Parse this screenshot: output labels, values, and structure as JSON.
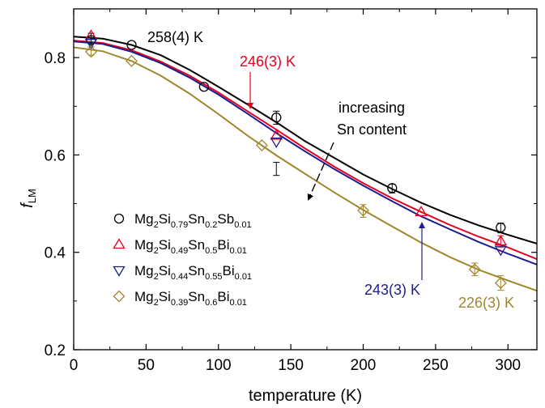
{
  "chart_data": {
    "type": "scatter",
    "xlabel": "temperature (K)",
    "ylabel_main": "f",
    "ylabel_sub": "LM",
    "xlim": [
      0,
      320
    ],
    "ylim": [
      0.2,
      0.9
    ],
    "x_ticks": [
      0,
      50,
      100,
      150,
      200,
      250,
      300
    ],
    "x_tick_labels": [
      "0",
      "50",
      "100",
      "150",
      "200",
      "250",
      "300"
    ],
    "y_ticks": [
      0.2,
      0.4,
      0.6,
      0.8
    ],
    "y_tick_labels": [
      "0.2",
      "0.4",
      "0.6",
      "0.8"
    ],
    "grid": false,
    "legend_position": "left",
    "series": [
      {
        "formula": [
          [
            "Mg",
            "2"
          ],
          [
            "Si",
            "0.79"
          ],
          [
            "Sn",
            "0.2"
          ],
          [
            "Sb",
            "0.01"
          ]
        ],
        "marker": "circle",
        "color": "#000000",
        "points": [
          [
            12,
            0.836
          ],
          [
            40,
            0.826
          ],
          [
            90,
            0.74
          ],
          [
            140,
            0.677
          ],
          [
            220,
            0.532
          ],
          [
            295,
            0.451
          ]
        ],
        "fit_x": [
          0,
          20,
          40,
          60,
          80,
          100,
          120,
          140,
          160,
          180,
          200,
          220,
          240,
          260,
          280,
          300,
          320
        ],
        "fit_y": [
          0.843,
          0.839,
          0.826,
          0.805,
          0.775,
          0.74,
          0.704,
          0.667,
          0.628,
          0.594,
          0.56,
          0.53,
          0.502,
          0.477,
          0.455,
          0.436,
          0.418
        ]
      },
      {
        "formula": [
          [
            "Mg",
            "2"
          ],
          [
            "Si",
            "0.49"
          ],
          [
            "Sn",
            "0.5"
          ],
          [
            "Bi",
            "0.01"
          ]
        ],
        "marker": "triangle-up",
        "color": "#e8001e",
        "points": [
          [
            12,
            0.845
          ],
          [
            140,
            0.64
          ],
          [
            240,
            0.483
          ],
          [
            295,
            0.423
          ]
        ],
        "fit_x": [
          0,
          20,
          40,
          60,
          80,
          100,
          120,
          140,
          160,
          180,
          200,
          220,
          240,
          260,
          280,
          300,
          320
        ],
        "fit_y": [
          0.835,
          0.83,
          0.815,
          0.792,
          0.763,
          0.728,
          0.69,
          0.652,
          0.613,
          0.576,
          0.542,
          0.511,
          0.483,
          0.456,
          0.432,
          0.41,
          0.386
        ]
      },
      {
        "formula": [
          [
            "Mg",
            "2"
          ],
          [
            "Si",
            "0.44"
          ],
          [
            "Sn",
            "0.55"
          ],
          [
            "Bi",
            "0.01"
          ]
        ],
        "marker": "triangle-down",
        "color": "#1c1c8c",
        "points": [
          [
            12,
            0.83
          ],
          [
            140,
            0.627
          ],
          [
            295,
            0.405
          ]
        ],
        "fit_x": [
          0,
          20,
          40,
          60,
          80,
          100,
          120,
          140,
          160,
          180,
          200,
          220,
          240,
          260,
          280,
          300,
          320
        ],
        "fit_y": [
          0.833,
          0.828,
          0.812,
          0.789,
          0.759,
          0.724,
          0.685,
          0.645,
          0.607,
          0.571,
          0.537,
          0.505,
          0.474,
          0.447,
          0.421,
          0.397,
          0.375
        ]
      },
      {
        "formula": [
          [
            "Mg",
            "2"
          ],
          [
            "Si",
            "0.39"
          ],
          [
            "Sn",
            "0.6"
          ],
          [
            "Bi",
            "0.01"
          ]
        ],
        "marker": "diamond",
        "color": "#a0862d",
        "points": [
          [
            12,
            0.812
          ],
          [
            40,
            0.793
          ],
          [
            130,
            0.62
          ],
          [
            200,
            0.486
          ],
          [
            277,
            0.365
          ],
          [
            295,
            0.337
          ]
        ],
        "fit_x": [
          0,
          20,
          40,
          60,
          80,
          100,
          120,
          140,
          160,
          180,
          200,
          220,
          240,
          260,
          280,
          300,
          320
        ],
        "fit_y": [
          0.821,
          0.813,
          0.793,
          0.763,
          0.726,
          0.684,
          0.64,
          0.599,
          0.561,
          0.523,
          0.487,
          0.453,
          0.42,
          0.39,
          0.364,
          0.342,
          0.321
        ]
      }
    ],
    "error_bars": [
      {
        "x": 12,
        "low": 0.822,
        "high": 0.85,
        "color": "#000000"
      },
      {
        "x": 12,
        "low": 0.805,
        "high": 0.822,
        "color": "#a0862d"
      },
      {
        "x": 140,
        "low": 0.663,
        "high": 0.69,
        "color": "#000000"
      },
      {
        "x": 140,
        "low": 0.558,
        "high": 0.585,
        "color": "#000000"
      },
      {
        "x": 200,
        "low": 0.472,
        "high": 0.498,
        "color": "#a0862d"
      },
      {
        "x": 220,
        "low": 0.522,
        "high": 0.54,
        "color": "#000000"
      },
      {
        "x": 277,
        "low": 0.352,
        "high": 0.378,
        "color": "#a0862d"
      },
      {
        "x": 295,
        "low": 0.44,
        "high": 0.46,
        "color": "#000000"
      },
      {
        "x": 295,
        "low": 0.41,
        "high": 0.434,
        "color": "#e8001e"
      },
      {
        "x": 295,
        "low": 0.322,
        "high": 0.352,
        "color": "#a0862d"
      }
    ],
    "annotations": [
      {
        "text": "258(4) K",
        "color": "#000000"
      },
      {
        "text": "246(3) K",
        "color": "#e8001e"
      },
      {
        "text": "243(3) K",
        "color": "#1c1c8c"
      },
      {
        "text": "226(3) K",
        "color": "#a0862d"
      },
      {
        "text": "increasing",
        "color": "#000000"
      },
      {
        "text": "Sn content",
        "color": "#000000"
      }
    ]
  }
}
